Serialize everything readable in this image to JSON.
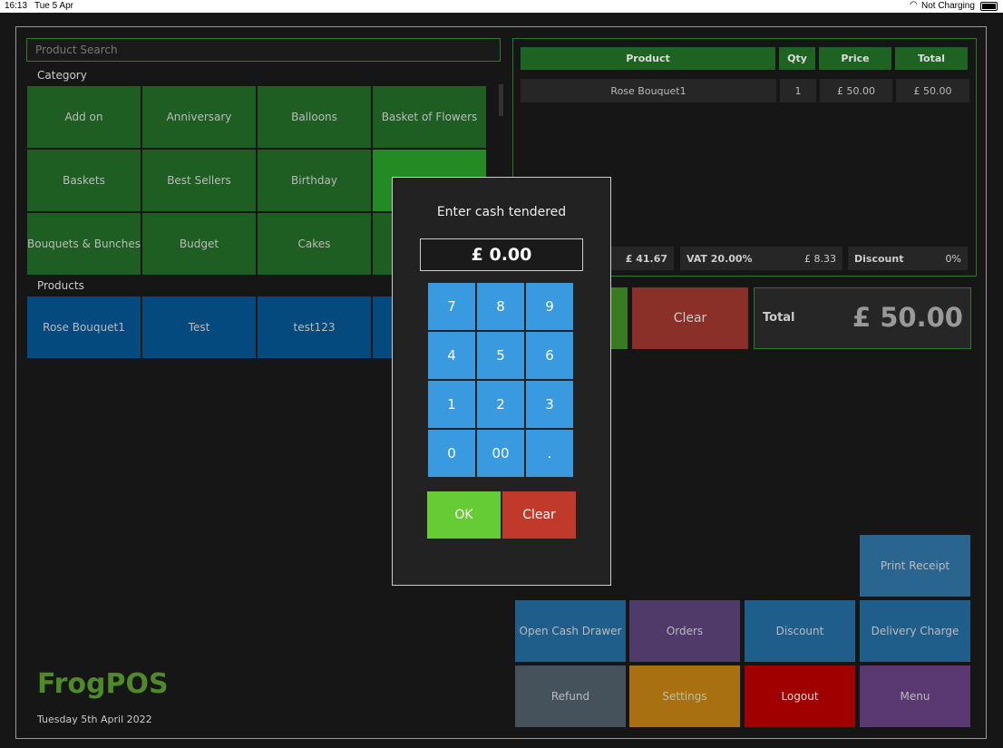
{
  "status_bar": {
    "time": "16:13",
    "date": "Tue 5 Apr",
    "battery": "Not Charging"
  },
  "search": {
    "placeholder": "Product Search"
  },
  "category_label": "Category",
  "categories": [
    "Add on",
    "Anniversary",
    "Balloons",
    "Basket of Flowers",
    "Baskets",
    "Best Sellers",
    "Birthday",
    "",
    "Bouquets & Bunches",
    "Budget",
    "Cakes",
    ""
  ],
  "products_label": "Products",
  "products": [
    "Rose Bouquet1",
    "Test",
    "test123"
  ],
  "order": {
    "headers": {
      "product": "Product",
      "qty": "Qty",
      "price": "Price",
      "total": "Total"
    },
    "rows": [
      {
        "product": "Rose Bouquet1",
        "qty": "1",
        "price": "£ 50.00",
        "total": "£ 50.00"
      }
    ],
    "subtotal": "£ 41.67",
    "vat_label": "VAT 20.00%",
    "vat": "£ 8.33",
    "discount_label": "Discount",
    "discount": "0%",
    "clear_label": "Clear",
    "total_label": "Total",
    "total": "£ 50.00"
  },
  "actions": {
    "print_receipt": "Print Receipt",
    "open_cash_drawer": "Open Cash Drawer",
    "orders": "Orders",
    "discount": "Discount",
    "delivery_charge": "Delivery Charge",
    "refund": "Refund",
    "settings": "Settings",
    "logout": "Logout",
    "menu": "Menu"
  },
  "brand": {
    "name": "FrogPOS",
    "date": "Tuesday 5th April 2022"
  },
  "modal": {
    "title": "Enter cash tendered",
    "value": "£ 0.00",
    "keys": [
      "7",
      "8",
      "9",
      "4",
      "5",
      "6",
      "1",
      "2",
      "3",
      "0",
      "00",
      "."
    ],
    "ok": "OK",
    "clear": "Clear"
  }
}
